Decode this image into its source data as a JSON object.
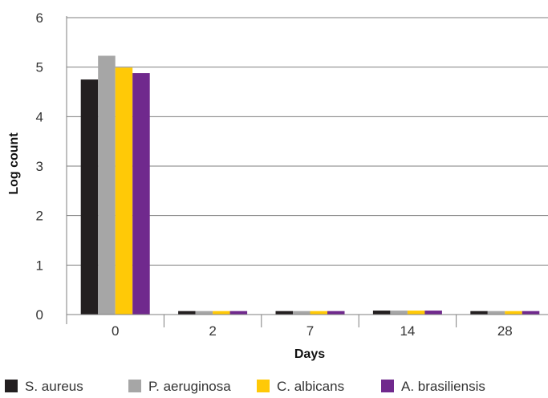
{
  "chart_data": {
    "type": "bar",
    "title": "",
    "xlabel": "Days",
    "ylabel": "Log count",
    "categories": [
      "0",
      "2",
      "7",
      "14",
      "28"
    ],
    "ylim": [
      0,
      6
    ],
    "yticks": [
      "0",
      "1",
      "2",
      "3",
      "4",
      "5",
      "6"
    ],
    "grid": true,
    "legend_position": "bottom",
    "series": [
      {
        "name": "S. aureus",
        "color": "#231f20",
        "values": [
          4.75,
          0.07,
          0.07,
          0.08,
          0.07
        ]
      },
      {
        "name": "P. aeruginosa",
        "color": "#a6a6a6",
        "values": [
          5.23,
          0.07,
          0.07,
          0.08,
          0.07
        ]
      },
      {
        "name": "C. albicans",
        "color": "#ffc907",
        "values": [
          4.99,
          0.07,
          0.07,
          0.08,
          0.07
        ]
      },
      {
        "name": "A. brasiliensis",
        "color": "#70298d",
        "values": [
          4.88,
          0.07,
          0.07,
          0.08,
          0.07
        ]
      }
    ]
  }
}
